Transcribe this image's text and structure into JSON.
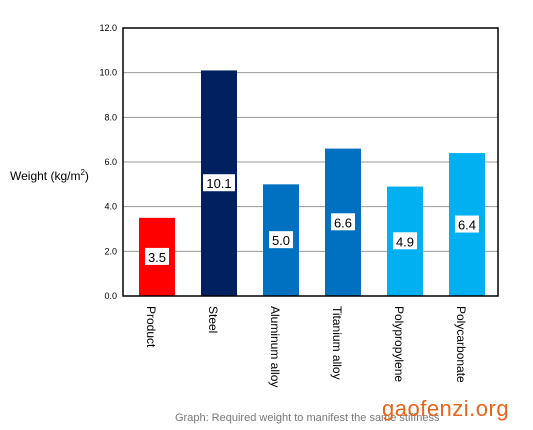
{
  "chart_data": {
    "type": "bar",
    "title": "",
    "ylabel": "Weight (kg/m",
    "ylabel_superscript": "2",
    "ylabel_close": ")",
    "xlabel": "",
    "ylim": [
      0,
      12
    ],
    "yticks": [
      "0.0",
      "2.0",
      "4.0",
      "6.0",
      "8.0",
      "10.0",
      "12.0"
    ],
    "grid": true,
    "categories": [
      "Product",
      "Steel",
      "Aluminum alloy",
      "Titanium alloy",
      "Polypropylene",
      "Polycarbonate"
    ],
    "values": [
      3.5,
      10.1,
      5.0,
      6.6,
      4.9,
      6.4
    ],
    "data_labels": [
      "3.5",
      "10.1",
      "5.0",
      "6.6",
      "4.9",
      "6.4"
    ],
    "colors": [
      "#ff0000",
      "#002060",
      "#0070c0",
      "#0070c0",
      "#00b0f0",
      "#00b0f0"
    ]
  },
  "caption": "Graph: Required weight to manifest the same stiffness",
  "watermark": "gaofenzi.org"
}
